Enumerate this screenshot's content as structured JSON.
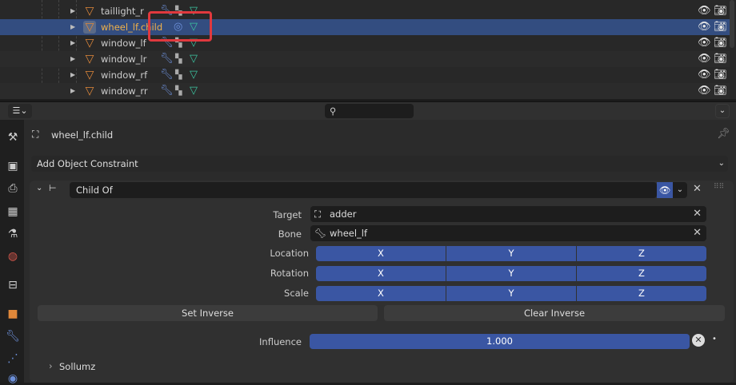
{
  "outliner": {
    "rows": [
      {
        "name": "taillight_r",
        "selected": false
      },
      {
        "name": "wheel_lf.child",
        "selected": true
      },
      {
        "name": "window_lf",
        "selected": false
      },
      {
        "name": "window_lr",
        "selected": false
      },
      {
        "name": "window_rf",
        "selected": false
      },
      {
        "name": "window_rr",
        "selected": false
      }
    ]
  },
  "header": {
    "search_placeholder": ""
  },
  "object": {
    "name": "wheel_lf.child"
  },
  "add_constraint": "Add Object Constraint",
  "constraint": {
    "name": "Child Of",
    "target_label": "Target",
    "target": "adder",
    "bone_label": "Bone",
    "bone": "wheel_lf",
    "location_label": "Location",
    "rotation_label": "Rotation",
    "scale_label": "Scale",
    "axes": [
      "X",
      "Y",
      "Z"
    ],
    "set_inverse": "Set Inverse",
    "clear_inverse": "Clear Inverse",
    "influence_label": "Influence",
    "influence": "1.000"
  },
  "panel_sollumz": "Sollumz",
  "colors": {
    "selection": "#334d80",
    "toggle": "#3a56a3",
    "annotation": "#e0393e"
  }
}
